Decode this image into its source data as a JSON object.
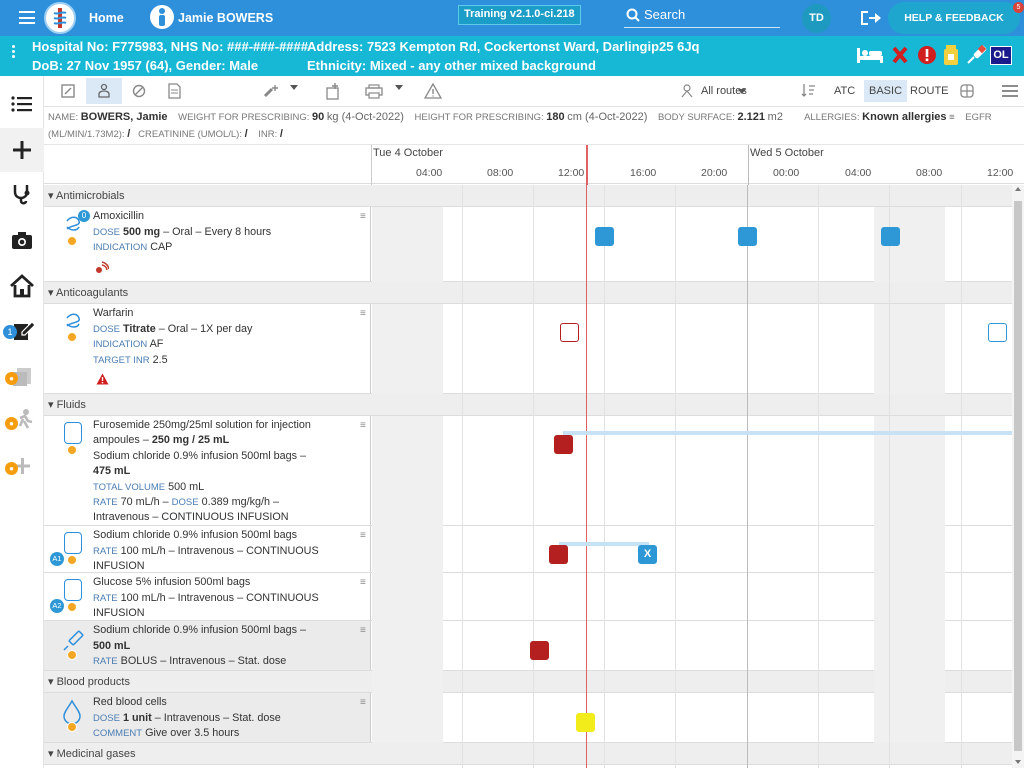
{
  "topbar": {
    "home": "Home",
    "patient_name": "Jamie BOWERS",
    "build": "Training v2.1.0-ci.218",
    "search": "Search",
    "user_initials": "TD",
    "help": "HELP & FEEDBACK",
    "notification_count": "5"
  },
  "patient": {
    "line1": "Hospital No: F775983, NHS No: ###-###-####",
    "line2": "DoB: 27 Nov 1957 (64), Gender: Male",
    "address": "Address: 7523 Kempton Rd, Cockertonst Ward, Darlingip25 6Jq",
    "ethnicity": "Ethnicity: Mixed - any other mixed background",
    "ol": "OL"
  },
  "toolbar": {
    "routes": "All routes",
    "atc": "ATC",
    "basic": "BASIC",
    "route": "ROUTE"
  },
  "info": {
    "name_l": "NAME:",
    "name": "BOWERS, Jamie",
    "w_l": "WEIGHT FOR PRESCRIBING:",
    "w": "90",
    "w_u": "kg (4-Oct-2022)",
    "h_l": "HEIGHT FOR PRESCRIBING:",
    "h": "180",
    "h_u": "cm (4-Oct-2022)",
    "bs_l": "BODY SURFACE:",
    "bs": "2.121",
    "bs_u": "m2",
    "al_l": "ALLERGIES:",
    "al": "Known allergies",
    "egfr": "EGFR",
    "egfr_u": "(ML/MIN/1.73M2):",
    "egfr_v": "/",
    "cr_l": "CREATININE (UMOL/L):",
    "cr": "/",
    "inr_l": "INR:",
    "inr": "/"
  },
  "timeline": {
    "day1": "Tue 4 October",
    "day2": "Wed 5 October",
    "hours": [
      "04:00",
      "08:00",
      "12:00",
      "16:00",
      "20:00",
      "00:00",
      "04:00",
      "08:00",
      "12:00"
    ]
  },
  "sections": {
    "antimicrobials": "Antimicrobials",
    "anticoagulants": "Anticoagulants",
    "fluids": "Fluids",
    "blood": "Blood products",
    "gases": "Medicinal gases"
  },
  "meds": {
    "amox": {
      "name": "Amoxicillin",
      "dose_l": "DOSE",
      "dose": "500 mg",
      "dose_r": "– Oral – Every 8 hours",
      "ind_l": "INDICATION",
      "ind": "CAP",
      "badge": "0"
    },
    "warf": {
      "name": "Warfarin",
      "dose_l": "DOSE",
      "dose": "Titrate",
      "dose_r": "– Oral – 1X per day",
      "ind_l": "INDICATION",
      "ind": "AF",
      "inr_l": "TARGET INR",
      "inr": "2.5"
    },
    "furo": {
      "l1": "Furosemide 250mg/25ml solution for injection",
      "l2a": "ampoules –",
      "l2b": "250 mg / 25 mL",
      "l3": "Sodium chloride 0.9% infusion 500ml bags –",
      "l4": "475 mL",
      "tv_l": "TOTAL VOLUME",
      "tv": "500 mL",
      "rate_l": "RATE",
      "rate": "70 mL/h –",
      "dose_l": "DOSE",
      "dose": "0.389 mg/kg/h –",
      "l7": "Intravenous – CONTINUOUS INFUSION"
    },
    "nacl1": {
      "l1": "Sodium chloride 0.9% infusion 500ml bags",
      "rate_l": "RATE",
      "rate": "100 mL/h – Intravenous – CONTINUOUS",
      "l3": "INFUSION",
      "badge": "A1",
      "x": "X"
    },
    "gluc": {
      "l1": "Glucose 5% infusion 500ml bags",
      "rate_l": "RATE",
      "rate": "100 mL/h – Intravenous – CONTINUOUS",
      "l3": "INFUSION",
      "badge": "A2"
    },
    "nacl2": {
      "l1": "Sodium chloride 0.9% infusion 500ml bags –",
      "l2": "500 mL",
      "rate_l": "RATE",
      "rate": "BOLUS – Intravenous – Stat. dose"
    },
    "rbc": {
      "l1": "Red blood cells",
      "dose_l": "DOSE",
      "dose": "1 unit",
      "dose_r": "– Intravenous – Stat. dose",
      "com_l": "COMMENT",
      "com": "Give over 3.5 hours"
    }
  }
}
